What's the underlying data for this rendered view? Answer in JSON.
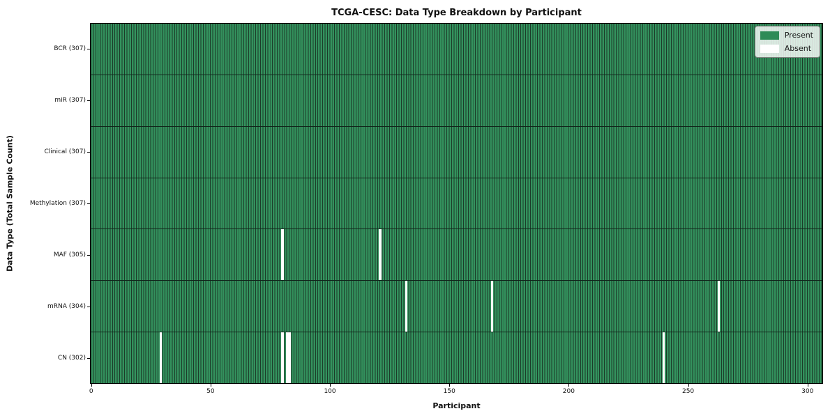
{
  "chart_data": {
    "type": "heatmap",
    "title": "TCGA-CESC: Data Type Breakdown by Participant",
    "xlabel": "Participant",
    "ylabel": "Data Type (Total Sample Count)",
    "x_ticks": [
      0,
      50,
      100,
      150,
      200,
      250,
      300
    ],
    "xlim": [
      -0.5,
      306.5
    ],
    "n_participants": 307,
    "grid": false,
    "legend_position": "upper right",
    "legend": [
      {
        "label": "Present",
        "color": "#2e8b57"
      },
      {
        "label": "Absent",
        "color": "#ffffff"
      }
    ],
    "rows": [
      {
        "label": "BCR (307)",
        "total": 307,
        "absent": []
      },
      {
        "label": "miR (307)",
        "total": 307,
        "absent": []
      },
      {
        "label": "Clinical (307)",
        "total": 307,
        "absent": []
      },
      {
        "label": "Methylation (307)",
        "total": 307,
        "absent": []
      },
      {
        "label": "MAF (305)",
        "total": 305,
        "absent": [
          80,
          121
        ]
      },
      {
        "label": "mRNA (304)",
        "total": 304,
        "absent": [
          132,
          168,
          263
        ]
      },
      {
        "label": "CN (302)",
        "total": 302,
        "absent": [
          29,
          80,
          82,
          83,
          240
        ]
      }
    ],
    "colors": {
      "present_fill": "#33915d",
      "bar_edge": "#1c3b29",
      "absent_fill": "#ffffff",
      "legend_present": "#2e8b57"
    }
  }
}
